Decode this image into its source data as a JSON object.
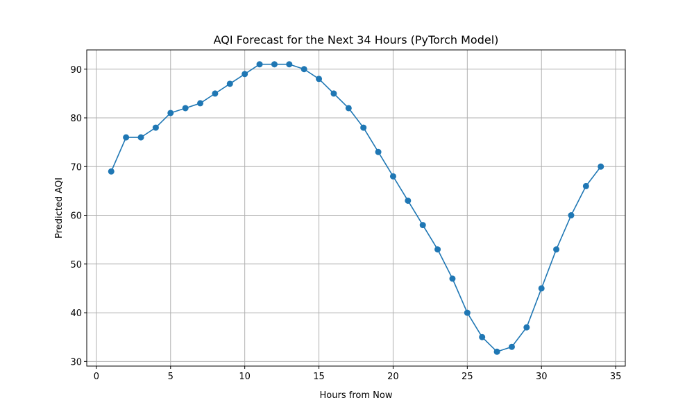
{
  "chart_data": {
    "type": "line",
    "title": "AQI Forecast for the Next 34 Hours (PyTorch Model)",
    "xlabel": "Hours from Now",
    "ylabel": "Predicted AQI",
    "xlim": [
      -0.65,
      35.65
    ],
    "ylim": [
      29.05,
      93.95
    ],
    "x_ticks": [
      0,
      5,
      10,
      15,
      20,
      25,
      30,
      35
    ],
    "y_ticks": [
      30,
      40,
      50,
      60,
      70,
      80,
      90
    ],
    "grid": true,
    "marker": "circle",
    "color": "#1f77b4",
    "x": [
      1,
      2,
      3,
      4,
      5,
      6,
      7,
      8,
      9,
      10,
      11,
      12,
      13,
      14,
      15,
      16,
      17,
      18,
      19,
      20,
      21,
      22,
      23,
      24,
      25,
      26,
      27,
      28,
      29,
      30,
      31,
      32,
      33,
      34
    ],
    "values": [
      69,
      76,
      76,
      78,
      81,
      82,
      83,
      85,
      87,
      89,
      91,
      91,
      91,
      90,
      88,
      85,
      82,
      78,
      73,
      68,
      63,
      58,
      53,
      47,
      40,
      35,
      32,
      33,
      37,
      45,
      53,
      60,
      66,
      70
    ]
  }
}
